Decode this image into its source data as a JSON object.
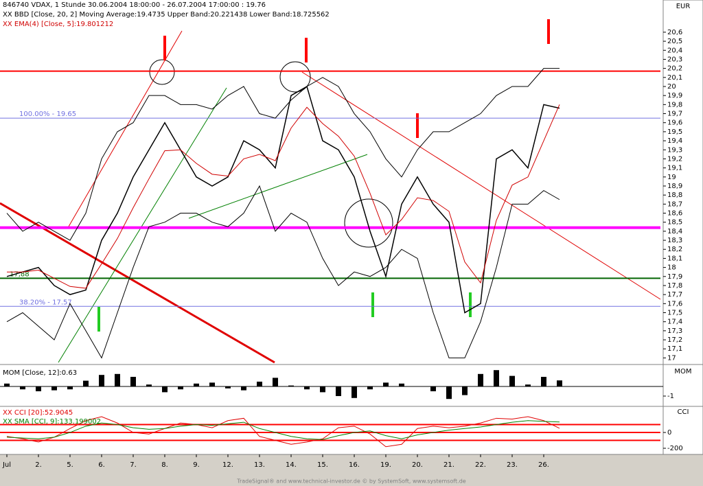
{
  "chart_data": [
    {
      "type": "line",
      "title": "846740 VDAX, 1 Stunde  30.06.2004 18:00:00 - 26.07.2004 17:00:00 : 19.76",
      "unit": "EUR",
      "annotations": [
        "XX BBD [Close, 20, 2] Moving Average:19.4735 Upper Band:20.221438 Lower Band:18.725562",
        "XX EMA(4) [Close, 5]:19.801212"
      ],
      "categories": [
        "Jul",
        null,
        "2.",
        null,
        "5.",
        null,
        "6.",
        null,
        "7.",
        null,
        "8.",
        null,
        "9.",
        null,
        "12.",
        null,
        "13.",
        null,
        "14.",
        null,
        "15.",
        null,
        "16.",
        null,
        "19.",
        null,
        "20.",
        null,
        "21.",
        null,
        "22.",
        null,
        "23.",
        null,
        "26.",
        null
      ],
      "series": [
        {
          "color": "#000000",
          "values": [
            17.9,
            17.95,
            18.0,
            17.8,
            17.7,
            17.75,
            18.3,
            18.6,
            19.0,
            19.3,
            19.6,
            19.3,
            19.0,
            18.9,
            19.0,
            19.4,
            19.3,
            19.1,
            19.9,
            20.0,
            19.4,
            19.3,
            19.0,
            18.4,
            17.9,
            18.7,
            19.0,
            18.7,
            18.5,
            17.5,
            17.6,
            19.2,
            19.3,
            19.1,
            19.8,
            19.76
          ]
        },
        {
          "color": "#d00000",
          "values": [
            17.95,
            17.95,
            17.97,
            17.88,
            17.79,
            17.77,
            18.04,
            18.32,
            18.66,
            18.98,
            19.29,
            19.3,
            19.15,
            19.03,
            19.01,
            19.2,
            19.25,
            19.18,
            19.54,
            19.77,
            19.59,
            19.45,
            19.23,
            18.82,
            18.36,
            18.53,
            18.77,
            18.74,
            18.62,
            18.06,
            17.83,
            18.52,
            18.91,
            19.0,
            19.4,
            19.8
          ]
        },
        {
          "color": "#000000",
          "values": [
            18.6,
            18.4,
            18.5,
            18.4,
            18.3,
            18.6,
            19.2,
            19.5,
            19.6,
            19.9,
            19.9,
            19.8,
            19.8,
            19.75,
            19.9,
            20.0,
            19.7,
            19.65,
            19.85,
            20.0,
            20.1,
            20.0,
            19.7,
            19.5,
            19.2,
            19.0,
            19.3,
            19.5,
            19.5,
            19.6,
            19.7,
            19.9,
            20.0,
            20.0,
            20.2,
            20.2
          ]
        },
        {
          "color": "#000000",
          "values": [
            17.4,
            17.5,
            17.35,
            17.2,
            17.6,
            17.3,
            17.0,
            17.5,
            18.0,
            18.45,
            18.5,
            18.6,
            18.6,
            18.5,
            18.45,
            18.6,
            18.9,
            18.4,
            18.6,
            18.5,
            18.1,
            17.8,
            17.95,
            17.9,
            18.0,
            18.2,
            18.1,
            17.5,
            17.0,
            17.0,
            17.4,
            18.0,
            18.7,
            18.7,
            18.85,
            18.75
          ]
        }
      ],
      "hlines": [
        {
          "value": 20.17,
          "color": "#ff0000"
        },
        {
          "value": 19.65,
          "color": "#7070e0",
          "label": "100.00% - 19.65"
        },
        {
          "value": 18.44,
          "color": "#ff00ff"
        },
        {
          "value": 17.88,
          "color": "#006400",
          "label": "17,88"
        },
        {
          "value": 17.57,
          "color": "#7070e0",
          "label": "38.20% - 17.57"
        }
      ],
      "ylim": [
        16.95,
        20.88
      ],
      "yticks": [
        17,
        {
          "value": 17.1,
          "label": "17,1"
        },
        {
          "value": 17.2,
          "label": "17,2"
        },
        {
          "value": 17.3,
          "label": "17,3"
        },
        {
          "value": 17.4,
          "label": "17,4"
        },
        {
          "value": 17.5,
          "label": "17,5"
        },
        {
          "value": 17.6,
          "label": "17,6"
        },
        {
          "value": 17.7,
          "label": "17,7"
        },
        {
          "value": 17.8,
          "label": "17,8"
        },
        {
          "value": 17.9,
          "label": "17,9"
        },
        18,
        {
          "value": 18.1,
          "label": "18,1"
        },
        {
          "value": 18.2,
          "label": "18,2"
        },
        {
          "value": 18.3,
          "label": "18,3"
        },
        {
          "value": 18.4,
          "label": "18,4"
        },
        {
          "value": 18.5,
          "label": "18,5"
        },
        {
          "value": 18.6,
          "label": "18,6"
        },
        {
          "value": 18.7,
          "label": "18,7"
        },
        {
          "value": 18.8,
          "label": "18,8"
        },
        {
          "value": 18.9,
          "label": "18,9"
        },
        19,
        {
          "value": 19.1,
          "label": "19,1"
        },
        {
          "value": 19.2,
          "label": "19,2"
        },
        {
          "value": 19.3,
          "label": "19,3"
        },
        {
          "value": 19.4,
          "label": "19,4"
        },
        {
          "value": 19.5,
          "label": "19,5"
        },
        {
          "value": 19.6,
          "label": "19,6"
        },
        {
          "value": 19.7,
          "label": "19,7"
        },
        {
          "value": 19.8,
          "label": "19,8"
        },
        {
          "value": 19.9,
          "label": "19,9"
        },
        20,
        {
          "value": 20.1,
          "label": "20,1"
        },
        {
          "value": 20.2,
          "label": "20,2"
        },
        {
          "value": 20.3,
          "label": "20,3"
        },
        {
          "value": 20.4,
          "label": "20,4"
        },
        {
          "value": 20.5,
          "label": "20,5"
        },
        {
          "value": 20.6,
          "label": "20,6"
        }
      ]
    },
    {
      "type": "bar",
      "title": "MOM [Close, 12]:0.63",
      "unit": "MOM",
      "color": "#000000",
      "values": [
        0.3,
        -0.3,
        -0.5,
        -0.4,
        -0.3,
        0.6,
        1.2,
        1.3,
        1.0,
        0.2,
        -0.6,
        -0.3,
        0.3,
        0.4,
        -0.2,
        -0.4,
        0.5,
        0.9,
        0.1,
        -0.3,
        -0.6,
        -1.0,
        -1.2,
        -0.3,
        0.4,
        0.3,
        0.0,
        -0.5,
        -1.3,
        -0.9,
        1.3,
        1.7,
        1.1,
        0.2,
        1.0,
        0.63
      ],
      "ylim": [
        -1.93,
        2
      ],
      "yticks": [
        -1
      ]
    },
    {
      "type": "line",
      "unit": "CCI",
      "series": [
        {
          "name": "XX CCI [20]:52.9045",
          "color": "#e00000",
          "values": [
            -50,
            -80,
            -120,
            -60,
            50,
            150,
            200,
            120,
            0,
            -20,
            50,
            120,
            100,
            60,
            150,
            180,
            -50,
            -100,
            -150,
            -120,
            -80,
            60,
            80,
            -20,
            -180,
            -150,
            50,
            80,
            60,
            80,
            120,
            180,
            170,
            200,
            150,
            52.9
          ]
        },
        {
          "name": "XX SMA [CCI, 9]:133.199002",
          "color": "#008000",
          "values": [
            -60,
            -70,
            -80,
            -60,
            0,
            80,
            120,
            100,
            60,
            40,
            50,
            80,
            100,
            90,
            110,
            130,
            50,
            0,
            -50,
            -80,
            -90,
            -40,
            0,
            20,
            -40,
            -80,
            -30,
            0,
            30,
            50,
            70,
            100,
            130,
            150,
            140,
            133.2
          ]
        }
      ],
      "hlines": [
        {
          "value": 100,
          "color": "#ff0000"
        },
        {
          "value": 0,
          "color": "#ff0000"
        },
        {
          "value": -100,
          "color": "#ff0000"
        }
      ],
      "ylim": [
        -278,
        322
      ],
      "yticks": [
        0,
        -200
      ]
    }
  ],
  "footer": "TradeSignal® and www.technical-investor.de © by SystemSoft, www.systemsoft.de"
}
